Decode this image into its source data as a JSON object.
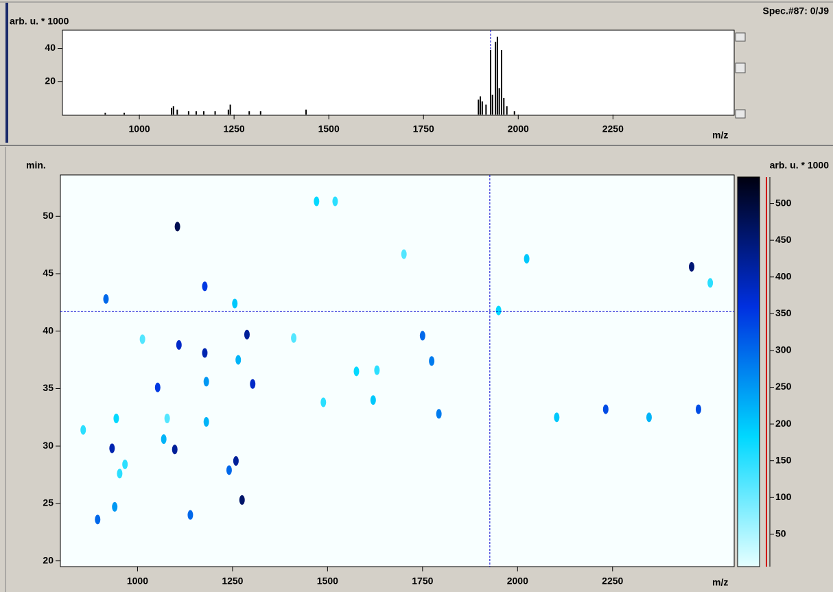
{
  "chart_data": [
    {
      "type": "bar",
      "title": "Spec.#87: 0/J9",
      "ylabel": "arb. u. * 1000",
      "xlabel": "m/z",
      "x": [
        910,
        960,
        1085,
        1090,
        1100,
        1130,
        1150,
        1170,
        1200,
        1235,
        1240,
        1290,
        1320,
        1440,
        1895,
        1900,
        1905,
        1915,
        1927,
        1932,
        1940,
        1945,
        1950,
        1956,
        1962,
        1970,
        1990
      ],
      "values": [
        1,
        1,
        4,
        5,
        3,
        2,
        2,
        2,
        2,
        3,
        6,
        2,
        2,
        3,
        9,
        11,
        8,
        6,
        39,
        12,
        44,
        47,
        16,
        39,
        10,
        5,
        2
      ],
      "color": "#000000",
      "xlim": [
        797,
        2570
      ],
      "xticks": [
        1000,
        1250,
        1500,
        1750,
        2000,
        2250
      ],
      "ylim": [
        0,
        51
      ],
      "yticks": [
        20,
        40
      ],
      "cursor_x": 1927
    },
    {
      "type": "heatmap",
      "ylabel": "min.",
      "xlabel": "m/z",
      "colorbar_label": "arb. u. * 1000",
      "x": [
        1105,
        1471,
        1520,
        1701,
        2024,
        2458,
        2507,
        1177,
        917,
        1256,
        1950,
        1288,
        1750,
        1109,
        1177,
        1411,
        1013,
        1774,
        1265,
        1576,
        1630,
        1181,
        1303,
        1053,
        1489,
        1620,
        1793,
        944,
        1078,
        1181,
        857,
        1069,
        933,
        1098,
        1259,
        1241,
        967,
        953,
        1275,
        940,
        1139,
        895,
        2103,
        2232,
        2346,
        2476
      ],
      "y": [
        49.1,
        51.3,
        51.3,
        46.7,
        46.3,
        45.6,
        44.2,
        43.9,
        42.8,
        42.4,
        41.8,
        39.7,
        39.6,
        38.8,
        38.1,
        39.4,
        39.3,
        37.4,
        37.5,
        36.5,
        36.6,
        35.6,
        35.4,
        35.1,
        33.8,
        34.0,
        32.8,
        32.4,
        32.4,
        32.1,
        31.4,
        30.6,
        29.8,
        29.7,
        28.7,
        27.9,
        28.4,
        27.6,
        25.3,
        24.7,
        24.0,
        23.6,
        32.5,
        33.2,
        32.5,
        33.2
      ],
      "values": [
        480,
        180,
        150,
        120,
        200,
        450,
        150,
        350,
        300,
        200,
        180,
        420,
        300,
        380,
        400,
        120,
        120,
        280,
        220,
        180,
        150,
        250,
        380,
        350,
        150,
        200,
        280,
        180,
        120,
        220,
        150,
        220,
        400,
        420,
        420,
        300,
        150,
        150,
        460,
        250,
        300,
        300,
        200,
        330,
        220,
        330
      ],
      "colormap": [
        "#e6ffff",
        "#00d8ff",
        "#0030e0",
        "#000010"
      ],
      "xlim": [
        797,
        2570
      ],
      "xticks": [
        1000,
        1250,
        1500,
        1750,
        2000,
        2250
      ],
      "ylim": [
        19.5,
        53.6
      ],
      "yticks": [
        20,
        25,
        30,
        35,
        40,
        45,
        50
      ],
      "clim": [
        6,
        536
      ],
      "cticks": [
        50,
        100,
        150,
        200,
        250,
        300,
        350,
        400,
        450,
        500
      ],
      "cursor": [
        1927,
        41.7
      ]
    }
  ]
}
